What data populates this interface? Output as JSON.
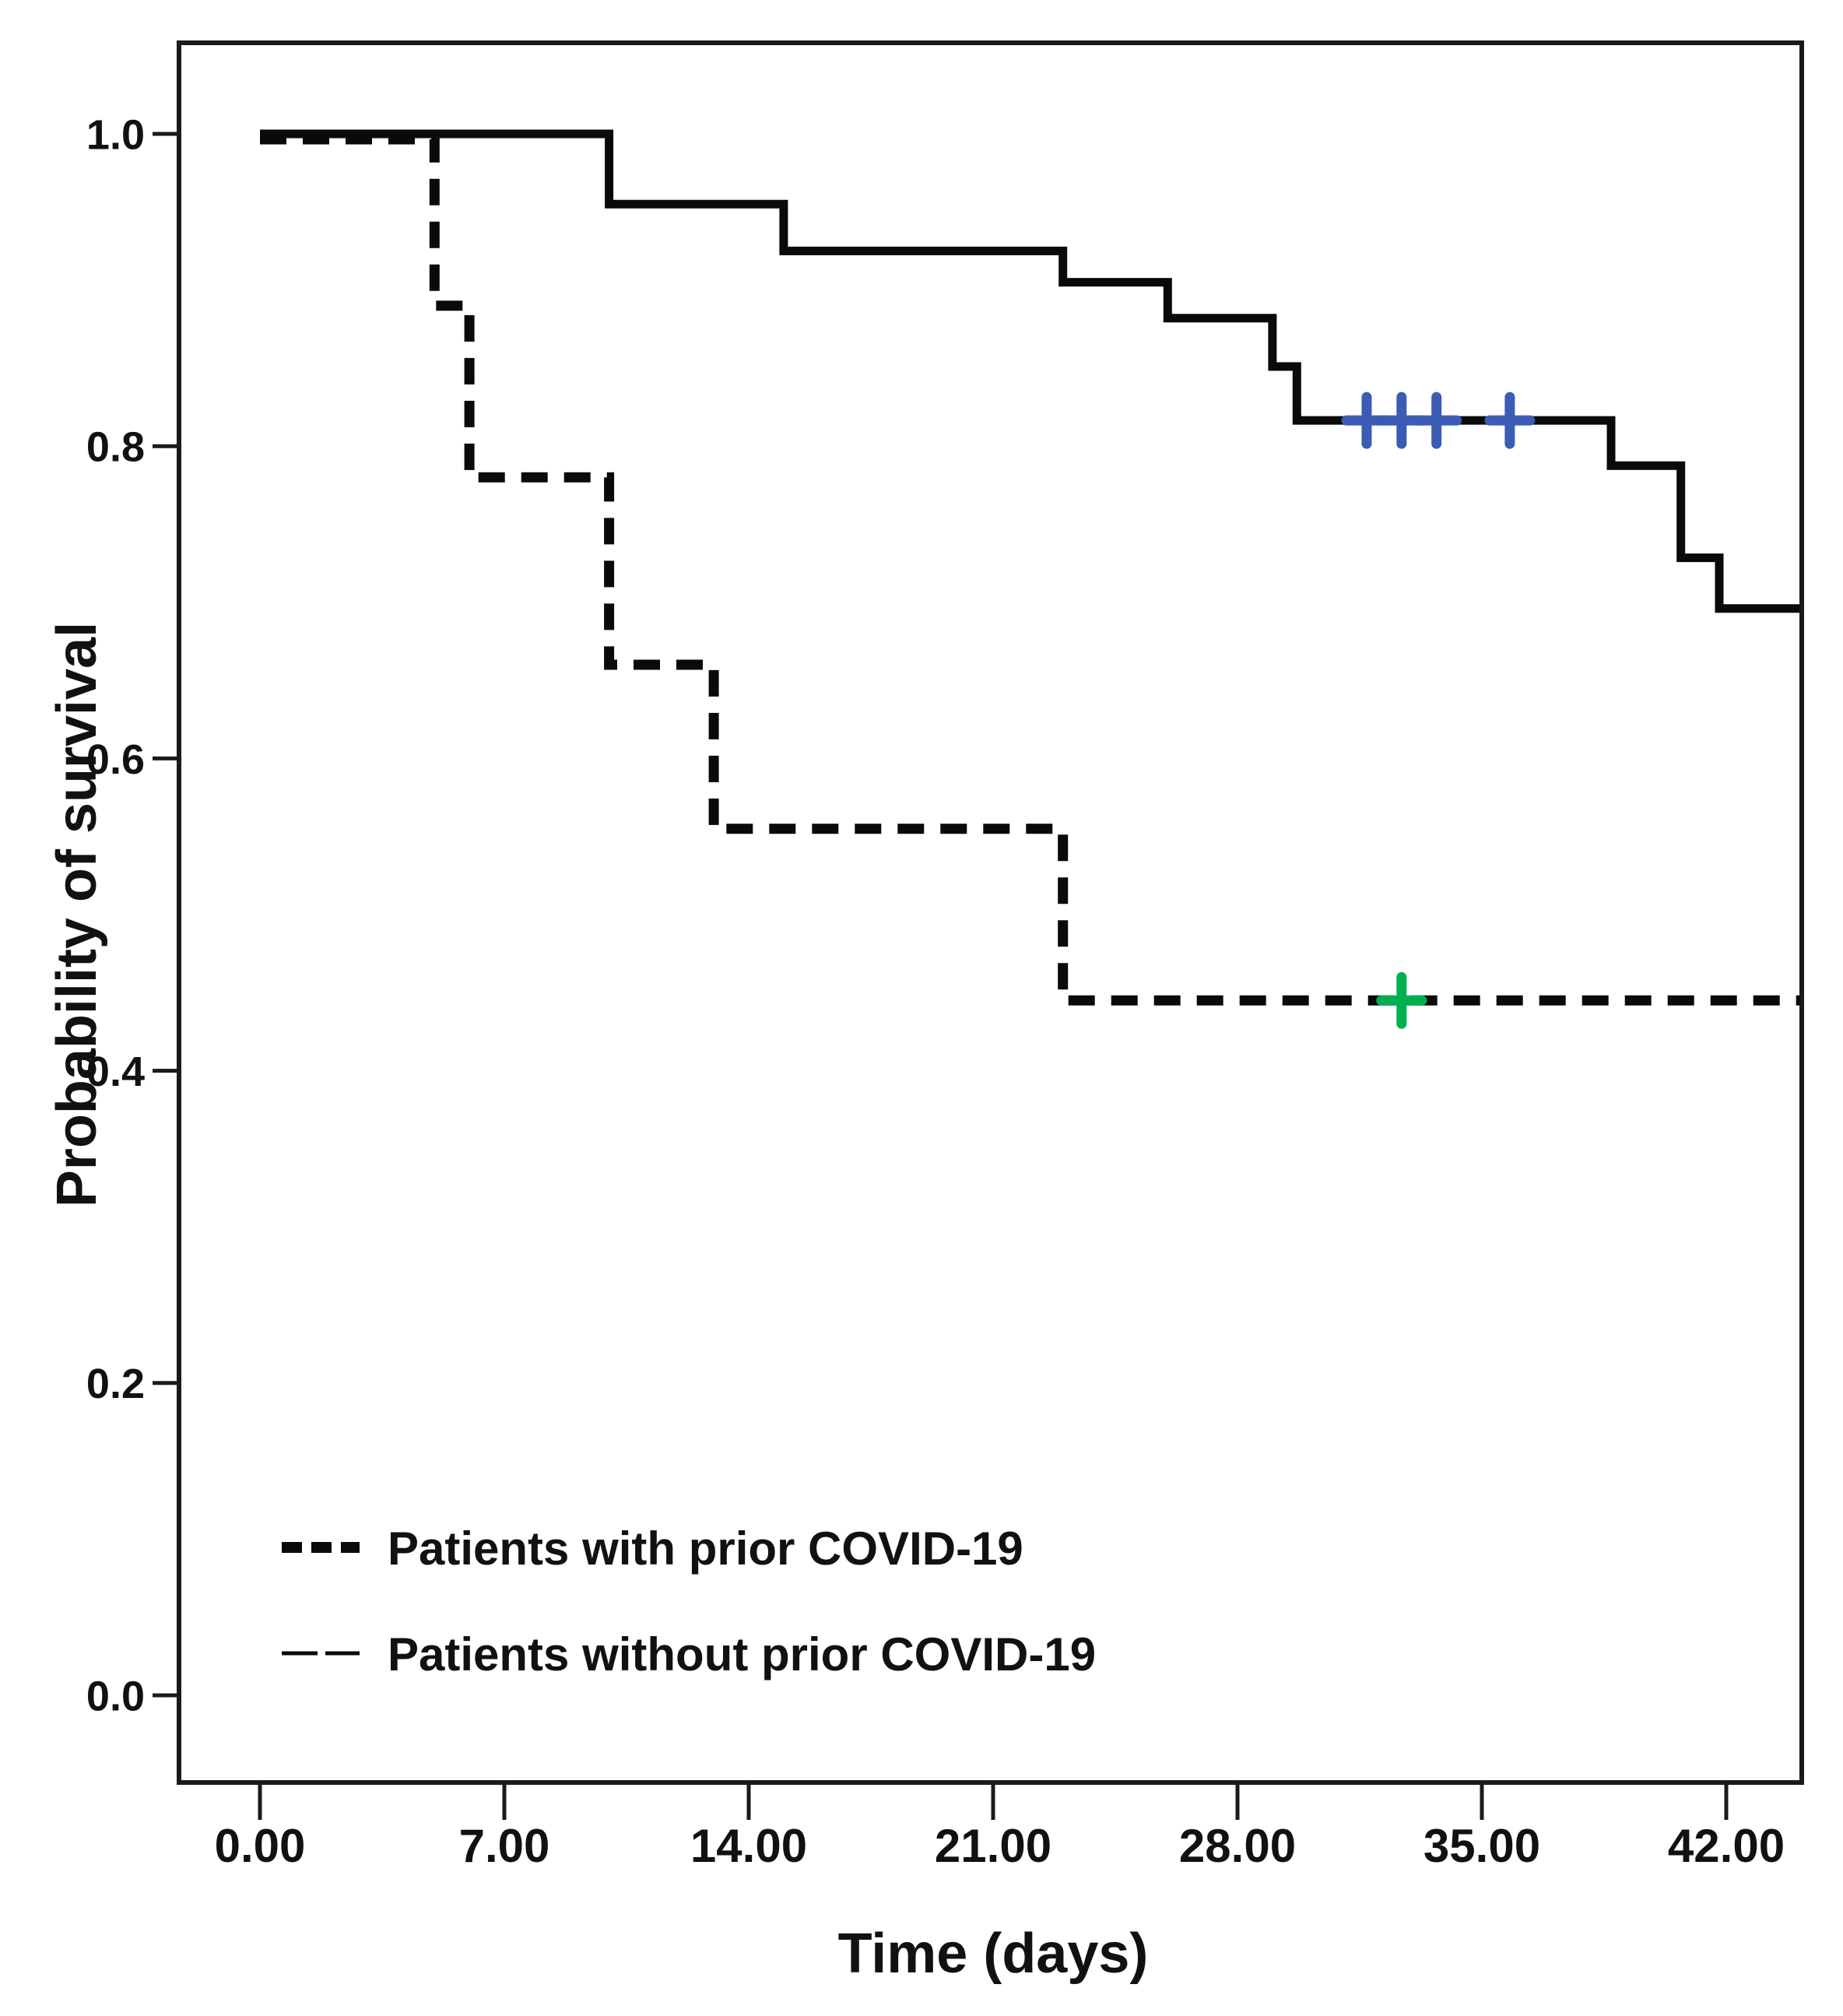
{
  "chart_data": {
    "type": "line",
    "subtype": "kaplan-meier-step-survival",
    "title": "",
    "xlabel": "Time (days)",
    "ylabel": "Probability of survival",
    "x_ticks": {
      "labels": [
        "0.00",
        "7.00",
        "14.00",
        "21.00",
        "28.00",
        "35.00",
        "42.00"
      ],
      "values": [
        0,
        7,
        14,
        21,
        28,
        35,
        42
      ]
    },
    "y_ticks": {
      "labels": [
        "1.0",
        "0.8",
        "0.6",
        "0.4",
        "0.2",
        "0.0"
      ],
      "values": [
        1.0,
        0.8,
        0.6,
        0.4,
        0.2,
        0.0
      ]
    },
    "xlim": [
      -2.3,
      44.2
    ],
    "ylim": [
      -0.06,
      1.06
    ],
    "grid": false,
    "series": [
      {
        "name": "Patients with prior COVID-19",
        "line_style": "dashed",
        "color": "#0a0a0a",
        "points": [
          [
            0,
            1.0
          ],
          [
            5,
            1.0
          ],
          [
            5,
            0.89
          ],
          [
            6,
            0.89
          ],
          [
            6,
            0.78
          ],
          [
            10,
            0.78
          ],
          [
            10,
            0.66
          ],
          [
            13,
            0.66
          ],
          [
            13,
            0.555
          ],
          [
            23,
            0.555
          ],
          [
            23,
            0.445
          ],
          [
            44.1,
            0.445
          ]
        ],
        "censor_marks": [
          {
            "t": 32.7,
            "v": 0.445,
            "color": "#00B050"
          }
        ]
      },
      {
        "name": "Patients without prior COVID-19",
        "line_style": "solid",
        "color": "#0a0a0a",
        "points": [
          [
            0,
            1.0
          ],
          [
            10,
            1.0
          ],
          [
            10,
            0.955
          ],
          [
            15,
            0.955
          ],
          [
            15,
            0.925
          ],
          [
            23,
            0.925
          ],
          [
            23,
            0.905
          ],
          [
            26,
            0.905
          ],
          [
            26,
            0.882
          ],
          [
            29,
            0.882
          ],
          [
            29,
            0.851
          ],
          [
            29.7,
            0.851
          ],
          [
            29.7,
            0.8165
          ],
          [
            38.7,
            0.8165
          ],
          [
            38.7,
            0.7875
          ],
          [
            40.7,
            0.7875
          ],
          [
            40.7,
            0.7285
          ],
          [
            41.8,
            0.7285
          ],
          [
            41.8,
            0.696
          ],
          [
            44.1,
            0.696
          ]
        ],
        "censor_marks": [
          {
            "t": 31.7,
            "v": 0.8165,
            "color": "#3B5BB5"
          },
          {
            "t": 32.7,
            "v": 0.8165,
            "color": "#3B5BB5"
          },
          {
            "t": 33.7,
            "v": 0.8165,
            "color": "#3B5BB5"
          },
          {
            "t": 35.8,
            "v": 0.8165,
            "color": "#3B5BB5"
          }
        ]
      }
    ],
    "legend": {
      "position": "lower-left-inside",
      "entries": [
        {
          "label": "Patients with prior COVID-19",
          "line_style": "dashed"
        },
        {
          "label": "Patients without prior COVID-19",
          "line_style": "solid"
        }
      ]
    }
  },
  "colors": {
    "curve": "#0a0a0a",
    "frame": "#1a1a1a",
    "text": "#111111",
    "censor_blue": "#3B5BB5",
    "censor_green": "#00B050",
    "background": "#ffffff"
  }
}
